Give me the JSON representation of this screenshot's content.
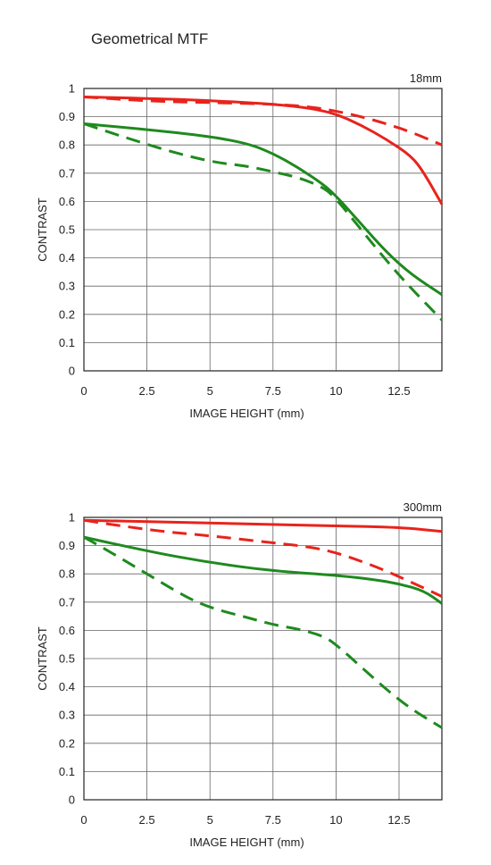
{
  "title": "Geometrical MTF",
  "colors": {
    "sagittal_red": "#e8231c",
    "green": "#1e8a1e",
    "grid": "#666666",
    "frame": "#222222"
  },
  "chart_data": [
    {
      "type": "line",
      "title": "18mm",
      "xlabel": "IMAGE HEIGHT (mm)",
      "ylabel": "CONTRAST",
      "xlim": [
        0,
        14.2
      ],
      "ylim": [
        0,
        1
      ],
      "xticks": [
        "0",
        "2.5",
        "5",
        "7.5",
        "10",
        "12.5"
      ],
      "yticks": [
        "0",
        "0.1",
        "0.2",
        "0.3",
        "0.4",
        "0.5",
        "0.6",
        "0.7",
        "0.8",
        "0.9",
        "1"
      ],
      "grid": true,
      "series": [
        {
          "color": "#e8231c",
          "style": "solid",
          "x": [
            0,
            2.5,
            5,
            7.5,
            9,
            10,
            11,
            12,
            13,
            13.5,
            14.2
          ],
          "y": [
            0.97,
            0.965,
            0.957,
            0.945,
            0.93,
            0.91,
            0.87,
            0.82,
            0.76,
            0.7,
            0.59
          ]
        },
        {
          "color": "#e8231c",
          "style": "dashed",
          "x": [
            0,
            2.5,
            5,
            7.5,
            9,
            10,
            11,
            12,
            13,
            14.2
          ],
          "y": [
            0.97,
            0.955,
            0.95,
            0.945,
            0.935,
            0.92,
            0.9,
            0.875,
            0.845,
            0.8
          ]
        },
        {
          "color": "#1e8a1e",
          "style": "solid",
          "x": [
            0,
            2.5,
            5,
            6.5,
            7.5,
            8.5,
            9.5,
            10,
            11,
            12,
            13,
            14.2
          ],
          "y": [
            0.875,
            0.855,
            0.83,
            0.805,
            0.77,
            0.72,
            0.66,
            0.62,
            0.52,
            0.42,
            0.34,
            0.27
          ]
        },
        {
          "color": "#1e8a1e",
          "style": "dashed",
          "x": [
            0,
            2.5,
            5,
            6.5,
            7.5,
            8.5,
            9.5,
            10,
            11,
            12,
            13,
            14.2
          ],
          "y": [
            0.875,
            0.8,
            0.74,
            0.725,
            0.705,
            0.685,
            0.65,
            0.61,
            0.5,
            0.39,
            0.29,
            0.18
          ]
        }
      ]
    },
    {
      "type": "line",
      "title": "300mm",
      "xlabel": "IMAGE HEIGHT (mm)",
      "ylabel": "CONTRAST",
      "xlim": [
        0,
        14.2
      ],
      "ylim": [
        0,
        1
      ],
      "xticks": [
        "0",
        "2.5",
        "5",
        "7.5",
        "10",
        "12.5"
      ],
      "yticks": [
        "0",
        "0.1",
        "0.2",
        "0.3",
        "0.4",
        "0.5",
        "0.6",
        "0.7",
        "0.8",
        "0.9",
        "1"
      ],
      "grid": true,
      "series": [
        {
          "color": "#e8231c",
          "style": "solid",
          "x": [
            0,
            2.5,
            5,
            7.5,
            10,
            12.5,
            14.2
          ],
          "y": [
            0.99,
            0.985,
            0.98,
            0.975,
            0.97,
            0.965,
            0.95
          ]
        },
        {
          "color": "#e8231c",
          "style": "dashed",
          "x": [
            0,
            2.5,
            5,
            7.5,
            9,
            10,
            11,
            12,
            13,
            14.2
          ],
          "y": [
            0.99,
            0.955,
            0.935,
            0.91,
            0.895,
            0.875,
            0.845,
            0.81,
            0.77,
            0.72
          ]
        },
        {
          "color": "#1e8a1e",
          "style": "solid",
          "x": [
            0,
            2.5,
            5,
            7.5,
            10,
            11.5,
            12.5,
            13.5,
            14.2
          ],
          "y": [
            0.93,
            0.88,
            0.84,
            0.81,
            0.795,
            0.78,
            0.765,
            0.74,
            0.695
          ]
        },
        {
          "color": "#1e8a1e",
          "style": "dashed",
          "x": [
            0,
            1,
            2.5,
            4,
            5,
            6.5,
            7.5,
            8.5,
            9.5,
            10,
            11,
            12,
            13,
            14.2
          ],
          "y": [
            0.93,
            0.88,
            0.8,
            0.72,
            0.68,
            0.645,
            0.62,
            0.605,
            0.58,
            0.55,
            0.47,
            0.39,
            0.32,
            0.255
          ]
        }
      ]
    }
  ]
}
